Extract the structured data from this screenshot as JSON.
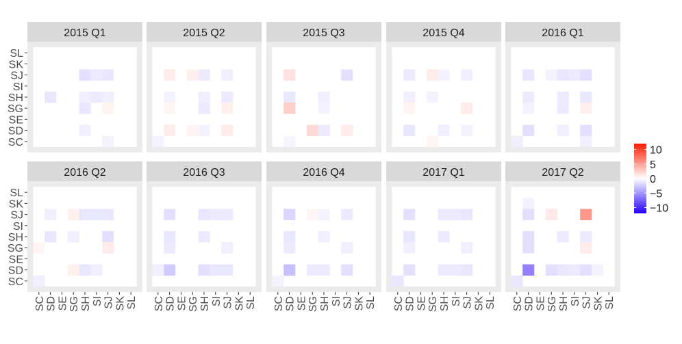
{
  "chart_data": {
    "type": "heatmap",
    "title": "",
    "xlabel": "",
    "ylabel": "",
    "categories": [
      "SC",
      "SD",
      "SE",
      "SG",
      "SH",
      "SI",
      "SJ",
      "SK",
      "SL"
    ],
    "facets": [
      {
        "label": "2015 Q1",
        "cells": [
          {
            "x": "SH",
            "y": "SJ",
            "value": -1.5
          },
          {
            "x": "SI",
            "y": "SJ",
            "value": -1.0
          },
          {
            "x": "SJ",
            "y": "SJ",
            "value": -1.2
          },
          {
            "x": "SD",
            "y": "SH",
            "value": -1.2
          },
          {
            "x": "SH",
            "y": "SH",
            "value": -0.8
          },
          {
            "x": "SI",
            "y": "SH",
            "value": -1.0
          },
          {
            "x": "SJ",
            "y": "SH",
            "value": -0.8
          },
          {
            "x": "SH",
            "y": "SG",
            "value": -1.2
          },
          {
            "x": "SJ",
            "y": "SG",
            "value": 0.6
          },
          {
            "x": "SH",
            "y": "SD",
            "value": -0.8
          },
          {
            "x": "SJ",
            "y": "SC",
            "value": -0.6
          }
        ]
      },
      {
        "label": "2015 Q2",
        "cells": [
          {
            "x": "SD",
            "y": "SJ",
            "value": 1.0
          },
          {
            "x": "SG",
            "y": "SJ",
            "value": 0.8
          },
          {
            "x": "SH",
            "y": "SJ",
            "value": -1.0
          },
          {
            "x": "SJ",
            "y": "SJ",
            "value": -0.8
          },
          {
            "x": "SD",
            "y": "SH",
            "value": -0.6
          },
          {
            "x": "SH",
            "y": "SH",
            "value": -0.8
          },
          {
            "x": "SJ",
            "y": "SH",
            "value": -1.0
          },
          {
            "x": "SD",
            "y": "SG",
            "value": 0.5
          },
          {
            "x": "SH",
            "y": "SG",
            "value": -1.0
          },
          {
            "x": "SJ",
            "y": "SG",
            "value": 0.8
          },
          {
            "x": "SD",
            "y": "SD",
            "value": 1.0
          },
          {
            "x": "SG",
            "y": "SD",
            "value": 0.6
          },
          {
            "x": "SH",
            "y": "SD",
            "value": -0.6
          },
          {
            "x": "SJ",
            "y": "SD",
            "value": 1.0
          },
          {
            "x": "SC",
            "y": "SC",
            "value": -0.6
          }
        ]
      },
      {
        "label": "2015 Q3",
        "cells": [
          {
            "x": "SD",
            "y": "SJ",
            "value": 1.5
          },
          {
            "x": "SJ",
            "y": "SJ",
            "value": -1.5
          },
          {
            "x": "SD",
            "y": "SH",
            "value": -1.2
          },
          {
            "x": "SH",
            "y": "SH",
            "value": -0.8
          },
          {
            "x": "SD",
            "y": "SG",
            "value": 2.5
          },
          {
            "x": "SH",
            "y": "SG",
            "value": -0.6
          },
          {
            "x": "SG",
            "y": "SD",
            "value": 2.0
          },
          {
            "x": "SH",
            "y": "SD",
            "value": -1.0
          },
          {
            "x": "SJ",
            "y": "SD",
            "value": 1.0
          },
          {
            "x": "SD",
            "y": "SC",
            "value": -0.5
          }
        ]
      },
      {
        "label": "2015 Q4",
        "cells": [
          {
            "x": "SD",
            "y": "SJ",
            "value": -1.0
          },
          {
            "x": "SG",
            "y": "SJ",
            "value": 1.0
          },
          {
            "x": "SH",
            "y": "SJ",
            "value": -0.6
          },
          {
            "x": "SJ",
            "y": "SJ",
            "value": -0.8
          },
          {
            "x": "SD",
            "y": "SH",
            "value": -0.8
          },
          {
            "x": "SG",
            "y": "SH",
            "value": -0.6
          },
          {
            "x": "SD",
            "y": "SG",
            "value": 0.6
          },
          {
            "x": "SJ",
            "y": "SG",
            "value": 1.0
          },
          {
            "x": "SD",
            "y": "SD",
            "value": -1.2
          },
          {
            "x": "SH",
            "y": "SD",
            "value": -0.8
          },
          {
            "x": "SJ",
            "y": "SD",
            "value": -0.6
          },
          {
            "x": "SG",
            "y": "SC",
            "value": 0.5
          }
        ]
      },
      {
        "label": "2016 Q1",
        "cells": [
          {
            "x": "SD",
            "y": "SJ",
            "value": -1.2
          },
          {
            "x": "SG",
            "y": "SJ",
            "value": -0.6
          },
          {
            "x": "SH",
            "y": "SJ",
            "value": -1.2
          },
          {
            "x": "SI",
            "y": "SJ",
            "value": -1.0
          },
          {
            "x": "SJ",
            "y": "SJ",
            "value": -1.5
          },
          {
            "x": "SD",
            "y": "SH",
            "value": -1.0
          },
          {
            "x": "SH",
            "y": "SH",
            "value": -1.0
          },
          {
            "x": "SJ",
            "y": "SH",
            "value": -1.2
          },
          {
            "x": "SD",
            "y": "SG",
            "value": -0.6
          },
          {
            "x": "SH",
            "y": "SG",
            "value": -1.0
          },
          {
            "x": "SJ",
            "y": "SG",
            "value": 0.8
          },
          {
            "x": "SD",
            "y": "SD",
            "value": -1.5
          },
          {
            "x": "SH",
            "y": "SD",
            "value": -0.8
          },
          {
            "x": "SJ",
            "y": "SD",
            "value": -1.5
          },
          {
            "x": "SC",
            "y": "SC",
            "value": -0.8
          },
          {
            "x": "SJ",
            "y": "SC",
            "value": -0.8
          }
        ]
      },
      {
        "label": "2016 Q2",
        "cells": [
          {
            "x": "SD",
            "y": "SJ",
            "value": -0.8
          },
          {
            "x": "SG",
            "y": "SJ",
            "value": 0.8
          },
          {
            "x": "SH",
            "y": "SJ",
            "value": -1.2
          },
          {
            "x": "SI",
            "y": "SJ",
            "value": -1.2
          },
          {
            "x": "SJ",
            "y": "SJ",
            "value": -1.2
          },
          {
            "x": "SD",
            "y": "SH",
            "value": -1.2
          },
          {
            "x": "SG",
            "y": "SH",
            "value": -0.8
          },
          {
            "x": "SJ",
            "y": "SH",
            "value": -1.5
          },
          {
            "x": "SC",
            "y": "SG",
            "value": 0.5
          },
          {
            "x": "SJ",
            "y": "SG",
            "value": 1.0
          },
          {
            "x": "SG",
            "y": "SD",
            "value": 0.8
          },
          {
            "x": "SH",
            "y": "SD",
            "value": -1.2
          },
          {
            "x": "SI",
            "y": "SD",
            "value": -0.8
          },
          {
            "x": "SC",
            "y": "SC",
            "value": -0.8
          }
        ]
      },
      {
        "label": "2016 Q3",
        "cells": [
          {
            "x": "SD",
            "y": "SJ",
            "value": -1.5
          },
          {
            "x": "SH",
            "y": "SJ",
            "value": -1.2
          },
          {
            "x": "SI",
            "y": "SJ",
            "value": -1.0
          },
          {
            "x": "SJ",
            "y": "SJ",
            "value": -1.0
          },
          {
            "x": "SD",
            "y": "SH",
            "value": -1.2
          },
          {
            "x": "SH",
            "y": "SH",
            "value": -1.0
          },
          {
            "x": "SD",
            "y": "SG",
            "value": -1.0
          },
          {
            "x": "SJ",
            "y": "SG",
            "value": -0.8
          },
          {
            "x": "SD",
            "y": "SD",
            "value": -2.5
          },
          {
            "x": "SH",
            "y": "SD",
            "value": -1.5
          },
          {
            "x": "SI",
            "y": "SD",
            "value": -1.2
          },
          {
            "x": "SJ",
            "y": "SD",
            "value": -1.2
          },
          {
            "x": "SC",
            "y": "SD",
            "value": -0.8
          }
        ]
      },
      {
        "label": "2016 Q4",
        "cells": [
          {
            "x": "SD",
            "y": "SJ",
            "value": -2.0
          },
          {
            "x": "SG",
            "y": "SJ",
            "value": 0.5
          },
          {
            "x": "SH",
            "y": "SJ",
            "value": -0.6
          },
          {
            "x": "SJ",
            "y": "SJ",
            "value": -1.0
          },
          {
            "x": "SD",
            "y": "SH",
            "value": -1.2
          },
          {
            "x": "SH",
            "y": "SH",
            "value": -0.8
          },
          {
            "x": "SD",
            "y": "SG",
            "value": -1.0
          },
          {
            "x": "SJ",
            "y": "SG",
            "value": -0.8
          },
          {
            "x": "SD",
            "y": "SD",
            "value": -3.0
          },
          {
            "x": "SG",
            "y": "SD",
            "value": -1.0
          },
          {
            "x": "SH",
            "y": "SD",
            "value": -1.0
          },
          {
            "x": "SJ",
            "y": "SD",
            "value": -1.5
          },
          {
            "x": "SC",
            "y": "SC",
            "value": -0.6
          }
        ]
      },
      {
        "label": "2017 Q1",
        "cells": [
          {
            "x": "SD",
            "y": "SJ",
            "value": -1.5
          },
          {
            "x": "SH",
            "y": "SJ",
            "value": -1.0
          },
          {
            "x": "SI",
            "y": "SJ",
            "value": -1.0
          },
          {
            "x": "SJ",
            "y": "SJ",
            "value": -1.2
          },
          {
            "x": "SD",
            "y": "SH",
            "value": -1.2
          },
          {
            "x": "SH",
            "y": "SH",
            "value": -1.0
          },
          {
            "x": "SD",
            "y": "SG",
            "value": -0.8
          },
          {
            "x": "SJ",
            "y": "SG",
            "value": -0.8
          },
          {
            "x": "SD",
            "y": "SD",
            "value": -1.5
          },
          {
            "x": "SH",
            "y": "SD",
            "value": -1.0
          },
          {
            "x": "SI",
            "y": "SD",
            "value": -1.0
          },
          {
            "x": "SJ",
            "y": "SD",
            "value": -1.2
          },
          {
            "x": "SC",
            "y": "SC",
            "value": -1.2
          }
        ]
      },
      {
        "label": "2017 Q2",
        "cells": [
          {
            "x": "SD",
            "y": "SK",
            "value": -0.6
          },
          {
            "x": "SD",
            "y": "SJ",
            "value": -1.5
          },
          {
            "x": "SG",
            "y": "SJ",
            "value": 1.2
          },
          {
            "x": "SJ",
            "y": "SJ",
            "value": 5.5
          },
          {
            "x": "SD",
            "y": "SH",
            "value": -1.5
          },
          {
            "x": "SH",
            "y": "SH",
            "value": -1.0
          },
          {
            "x": "SJ",
            "y": "SH",
            "value": -1.0
          },
          {
            "x": "SD",
            "y": "SG",
            "value": -1.5
          },
          {
            "x": "SJ",
            "y": "SG",
            "value": 1.0
          },
          {
            "x": "SD",
            "y": "SD",
            "value": -6.0
          },
          {
            "x": "SG",
            "y": "SD",
            "value": -1.5
          },
          {
            "x": "SH",
            "y": "SD",
            "value": -1.2
          },
          {
            "x": "SI",
            "y": "SD",
            "value": -1.0
          },
          {
            "x": "SJ",
            "y": "SD",
            "value": -1.5
          },
          {
            "x": "SK",
            "y": "SD",
            "value": -0.6
          },
          {
            "x": "SC",
            "y": "SC",
            "value": -1.2
          }
        ]
      }
    ],
    "value_range": [
      -12,
      12
    ],
    "colors": {
      "low": "#2400ff",
      "mid": "#ffffff",
      "high": "#ff1a00",
      "strip": "#d9d9d9",
      "panel_grid": "#ebebeb",
      "text": "#1a1a1a",
      "axis_text": "#4d4d4d"
    },
    "legend": {
      "position": "right",
      "ticks": [
        10,
        5,
        0,
        -5,
        -10
      ],
      "tick_labels": [
        "10",
        "5",
        "0",
        "−5",
        "−10"
      ]
    },
    "grid": true
  }
}
